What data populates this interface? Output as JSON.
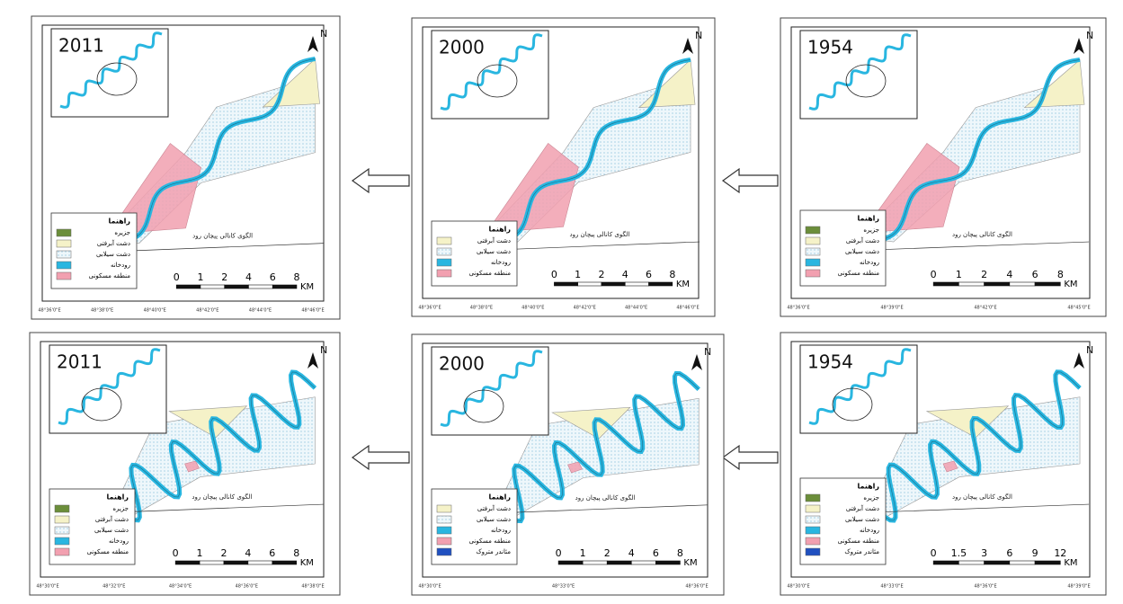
{
  "panels": [
    {
      "year": "2011",
      "north": "N",
      "legend_title": "راهنما",
      "legend": [
        "جزیره",
        "دشت آبرفتی",
        "دشت سیلابی",
        "رودخانه",
        "منطقه مسکونی"
      ],
      "pattern": "الگوی کانالی پیچان رود",
      "scale": [
        "0",
        "1",
        "2",
        "4",
        "6",
        "8"
      ],
      "unit": "KM",
      "coords": [
        "48°36'0\"E",
        "48°38'0\"E",
        "48°40'0\"E",
        "48°42'0\"E",
        "48°44'0\"E",
        "48°46'0\"E"
      ]
    },
    {
      "year": "2000",
      "north": "N",
      "legend_title": "راهنما",
      "legend": [
        "دشت آبرفتی",
        "دشت سیلابی",
        "رودخانه",
        "منطقه مسکونی"
      ],
      "pattern": "الگوی کانالی پیچان رود",
      "scale": [
        "0",
        "1",
        "2",
        "4",
        "6",
        "8"
      ],
      "unit": "KM",
      "coords": [
        "48°36'0\"E",
        "48°38'0\"E",
        "48°40'0\"E",
        "48°42'0\"E",
        "48°44'0\"E",
        "48°46'0\"E"
      ]
    },
    {
      "year": "1954",
      "north": "N",
      "legend_title": "راهنما",
      "legend": [
        "جزیره",
        "دشت آبرفتی",
        "دشت سیلابی",
        "رودخانه",
        "منطقه مسکونی"
      ],
      "pattern": "الگوی کانالی پیچان رود",
      "scale": [
        "0",
        "1",
        "2",
        "4",
        "6",
        "8"
      ],
      "unit": "KM",
      "coords": [
        "48°36'0\"E",
        "48°39'0\"E",
        "48°42'0\"E",
        "48°45'0\"E"
      ]
    },
    {
      "year": "2011",
      "north": "N",
      "legend_title": "راهنما",
      "legend": [
        "جزیره",
        "دشت آبرفتی",
        "دشت سیلابی",
        "رودخانه",
        "منطقه مسکونی"
      ],
      "pattern": "الگوی کانالی پیچان رود",
      "scale": [
        "0",
        "1",
        "2",
        "4",
        "6",
        "8"
      ],
      "unit": "KM",
      "coords": [
        "48°30'0\"E",
        "48°32'0\"E",
        "48°34'0\"E",
        "48°36'0\"E",
        "48°38'0\"E"
      ]
    },
    {
      "year": "2000",
      "north": "N",
      "legend_title": "راهنما",
      "legend": [
        "دشت آبرفتی",
        "دشت سیلابی",
        "رودخانه",
        "منطقه مسکونی",
        "مئاندر متروک"
      ],
      "pattern": "الگوی کانالی پیچان رود",
      "scale": [
        "0",
        "1",
        "2",
        "4",
        "6",
        "8"
      ],
      "unit": "KM",
      "coords": [
        "48°30'0\"E",
        "48°33'0\"E",
        "48°36'0\"E"
      ]
    },
    {
      "year": "1954",
      "north": "N",
      "legend_title": "راهنما",
      "legend": [
        "جزیره",
        "دشت آبرفتی",
        "دشت سیلابی",
        "رودخانه",
        "منطقه مسکونی",
        "مئاندر متروک"
      ],
      "pattern": "الگوی کانالی پیچان رود",
      "scale": [
        "0",
        "1.5",
        "3",
        "6",
        "9",
        "12"
      ],
      "unit": "KM",
      "coords": [
        "48°30'0\"E",
        "48°33'0\"E",
        "48°36'0\"E",
        "48°39'0\"E"
      ]
    }
  ]
}
